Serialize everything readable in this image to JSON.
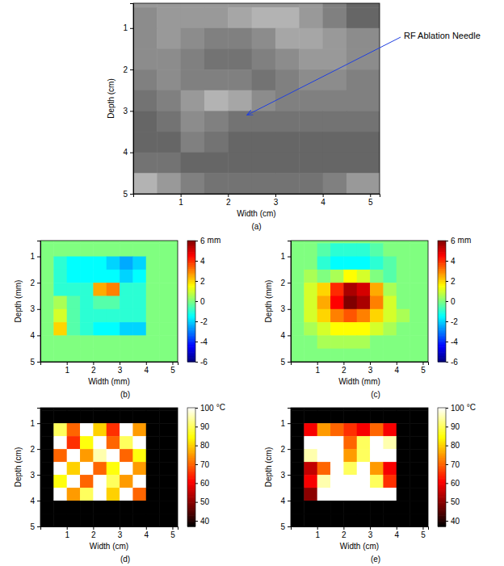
{
  "chart_data": [
    {
      "type": "heatmap",
      "caption": "(a)",
      "xlabel": "Width (cm)",
      "ylabel": "Depth (cm)",
      "xlim": [
        0,
        5.2
      ],
      "ylim": [
        0.4,
        5
      ],
      "xticks": [
        1,
        2,
        3,
        4,
        5
      ],
      "yticks": [
        1,
        2,
        3,
        4,
        5
      ],
      "color": "gray",
      "zlim": [
        0,
        1
      ],
      "x_edges": [
        0,
        0.5,
        1,
        1.5,
        2,
        2.5,
        3,
        3.5,
        4,
        4.5,
        5.2
      ],
      "y_edges": [
        0,
        0.5,
        1,
        1.5,
        2,
        2.5,
        3,
        3.5,
        4,
        4.5,
        5
      ],
      "cells": [
        [
          0.6,
          0.6,
          0.6,
          0.6,
          0.6,
          0.6,
          0.6,
          0.6,
          0.5,
          0.4
        ],
        [
          0.55,
          0.6,
          0.6,
          0.6,
          0.65,
          0.7,
          0.7,
          0.6,
          0.5,
          0.4
        ],
        [
          0.55,
          0.6,
          0.55,
          0.5,
          0.5,
          0.55,
          0.65,
          0.65,
          0.6,
          0.55
        ],
        [
          0.55,
          0.55,
          0.5,
          0.45,
          0.45,
          0.5,
          0.55,
          0.6,
          0.6,
          0.55
        ],
        [
          0.5,
          0.55,
          0.5,
          0.5,
          0.5,
          0.45,
          0.5,
          0.55,
          0.55,
          0.5
        ],
        [
          0.45,
          0.5,
          0.6,
          0.7,
          0.65,
          0.55,
          0.5,
          0.5,
          0.5,
          0.5
        ],
        [
          0.4,
          0.45,
          0.55,
          0.5,
          0.45,
          0.45,
          0.45,
          0.45,
          0.45,
          0.45
        ],
        [
          0.4,
          0.4,
          0.5,
          0.45,
          0.4,
          0.4,
          0.4,
          0.4,
          0.4,
          0.4
        ],
        [
          0.45,
          0.45,
          0.4,
          0.4,
          0.4,
          0.4,
          0.4,
          0.4,
          0.4,
          0.4
        ],
        [
          0.7,
          0.6,
          0.5,
          0.45,
          0.45,
          0.45,
          0.45,
          0.45,
          0.5,
          0.6
        ]
      ],
      "annotations": [
        {
          "text": "RF Ablation Needle",
          "x": 2.4,
          "y": 3.1
        }
      ]
    },
    {
      "type": "heatmap",
      "caption": "(b)",
      "xlabel": "Width (mm)",
      "ylabel": "Depth (mm)",
      "xlim": [
        0,
        5.2
      ],
      "ylim": [
        0.4,
        5
      ],
      "xticks": [
        1,
        2,
        3,
        4,
        5
      ],
      "yticks": [
        1,
        2,
        3,
        4,
        5
      ],
      "color": "jet",
      "zlim": [
        -6,
        6
      ],
      "colorbar": {
        "ticks": [
          -6,
          -4,
          -2,
          0,
          2,
          4,
          6
        ],
        "label": "mm"
      },
      "x_edges": [
        0,
        0.5,
        1,
        1.5,
        2,
        2.5,
        3,
        3.5,
        4,
        4.5,
        5.2
      ],
      "y_edges": [
        0,
        0.5,
        1,
        1.5,
        2,
        2.5,
        3,
        3.5,
        4,
        4.5,
        5
      ],
      "cells": [
        [
          0,
          0,
          0,
          0,
          0,
          0,
          0,
          0,
          0,
          0
        ],
        [
          0,
          0,
          0,
          0,
          0,
          0,
          0,
          0,
          0,
          0
        ],
        [
          0,
          -1,
          -1.5,
          -1.5,
          -1.5,
          -2,
          -2.5,
          -2,
          0,
          0
        ],
        [
          0,
          -1,
          -1.5,
          -1.5,
          -1.5,
          -1.5,
          -2,
          -1.5,
          0,
          0
        ],
        [
          0,
          -1,
          -1,
          -1,
          2.5,
          3,
          -1,
          -1,
          0,
          0
        ],
        [
          0,
          0.5,
          -0.5,
          -1,
          -0.5,
          -0.5,
          -1,
          -1,
          0,
          0
        ],
        [
          0,
          1,
          -0.5,
          -1,
          -1,
          -1,
          -1,
          -1,
          0,
          0
        ],
        [
          0,
          2,
          -0.5,
          -1,
          -1.5,
          -1.5,
          -2,
          -2,
          0,
          0
        ],
        [
          0,
          0,
          0,
          0,
          0,
          0,
          0,
          0,
          0,
          0
        ],
        [
          0,
          0,
          0,
          0,
          0,
          0,
          0,
          0,
          0,
          0
        ]
      ]
    },
    {
      "type": "heatmap",
      "caption": "(c)",
      "xlabel": "Width (mm)",
      "ylabel": "Depth (mm)",
      "xlim": [
        0,
        5.2
      ],
      "ylim": [
        0.4,
        5
      ],
      "xticks": [
        1,
        2,
        3,
        4,
        5
      ],
      "yticks": [
        1,
        2,
        3,
        4,
        5
      ],
      "color": "jet",
      "zlim": [
        -6,
        6
      ],
      "colorbar": {
        "ticks": [
          -6,
          -4,
          -2,
          0,
          2,
          4,
          6
        ],
        "label": "mm"
      },
      "x_edges": [
        0,
        0.5,
        1,
        1.5,
        2,
        2.5,
        3,
        3.5,
        4,
        4.5,
        5.2
      ],
      "y_edges": [
        0,
        0.5,
        1,
        1.5,
        2,
        2.5,
        3,
        3.5,
        4,
        4.5,
        5
      ],
      "cells": [
        [
          0,
          0,
          0,
          0,
          0,
          0,
          0,
          0,
          0,
          0
        ],
        [
          0,
          0,
          -0.5,
          -1,
          -1,
          -1,
          -0.5,
          0,
          0,
          0
        ],
        [
          0,
          0,
          -1,
          -1.5,
          -1.5,
          -1.5,
          -1,
          -0.5,
          0,
          0
        ],
        [
          0,
          0.5,
          0,
          0.5,
          1.5,
          1,
          0,
          -0.5,
          0,
          0
        ],
        [
          0,
          1,
          2,
          4,
          5.5,
          5,
          2.5,
          0.5,
          0,
          0
        ],
        [
          0,
          1,
          2.5,
          4.5,
          6,
          5.5,
          3,
          1,
          0,
          0
        ],
        [
          0,
          1,
          2,
          3,
          3.5,
          3,
          2,
          1,
          0.5,
          0
        ],
        [
          0,
          0.5,
          1,
          1.5,
          1.5,
          1.5,
          1,
          0.5,
          0,
          0
        ],
        [
          0,
          0,
          0.5,
          0.5,
          0.5,
          0.5,
          0,
          0,
          0,
          0
        ],
        [
          0,
          0,
          0,
          0,
          0,
          0,
          0,
          0,
          0,
          0
        ]
      ]
    },
    {
      "type": "heatmap",
      "caption": "(d)",
      "xlabel": "Width (cm)",
      "ylabel": "Depth (cm)",
      "xlim": [
        0,
        5.2
      ],
      "ylim": [
        0.4,
        5
      ],
      "xticks": [
        1,
        2,
        3,
        4,
        5
      ],
      "yticks": [
        1,
        2,
        3,
        4,
        5
      ],
      "color": "hot",
      "zlim": [
        37,
        100
      ],
      "colorbar": {
        "ticks": [
          40,
          50,
          60,
          70,
          80,
          90,
          100
        ],
        "label": "°C"
      },
      "x_edges": [
        0,
        0.5,
        1,
        1.5,
        2,
        2.5,
        3,
        3.5,
        4,
        4.5,
        5.2
      ],
      "y_edges": [
        0,
        0.5,
        1,
        1.5,
        2,
        2.5,
        3,
        3.5,
        4,
        4.5,
        5
      ],
      "cells": [
        [
          37,
          37,
          37,
          37,
          37,
          37,
          37,
          37,
          37,
          37
        ],
        [
          37,
          37,
          37,
          37,
          37,
          37,
          37,
          37,
          37,
          37
        ],
        [
          37,
          90,
          70,
          100,
          80,
          65,
          100,
          75,
          37,
          37
        ],
        [
          37,
          100,
          65,
          85,
          100,
          70,
          90,
          100,
          37,
          37
        ],
        [
          37,
          70,
          100,
          75,
          95,
          100,
          70,
          85,
          37,
          37
        ],
        [
          37,
          100,
          80,
          100,
          70,
          85,
          100,
          75,
          37,
          37
        ],
        [
          37,
          85,
          100,
          70,
          100,
          90,
          75,
          100,
          37,
          37
        ],
        [
          37,
          100,
          75,
          90,
          100,
          80,
          100,
          70,
          37,
          37
        ],
        [
          37,
          37,
          37,
          37,
          37,
          37,
          37,
          37,
          37,
          37
        ],
        [
          37,
          37,
          37,
          37,
          37,
          37,
          37,
          37,
          37,
          37
        ]
      ]
    },
    {
      "type": "heatmap",
      "caption": "(e)",
      "xlabel": "Width (cm)",
      "ylabel": "Depth (cm)",
      "xlim": [
        0,
        5.2
      ],
      "ylim": [
        0.4,
        5
      ],
      "xticks": [
        1,
        2,
        3,
        4,
        5
      ],
      "yticks": [
        1,
        2,
        3,
        4,
        5
      ],
      "color": "hot",
      "zlim": [
        37,
        100
      ],
      "colorbar": {
        "ticks": [
          40,
          50,
          60,
          70,
          80,
          90,
          100
        ],
        "label": "°C"
      },
      "x_edges": [
        0,
        0.5,
        1,
        1.5,
        2,
        2.5,
        3,
        3.5,
        4,
        4.5,
        5.2
      ],
      "y_edges": [
        0,
        0.5,
        1,
        1.5,
        2,
        2.5,
        3,
        3.5,
        4,
        4.5,
        5
      ],
      "cells": [
        [
          37,
          37,
          37,
          37,
          37,
          37,
          37,
          37,
          37,
          37
        ],
        [
          37,
          37,
          37,
          37,
          37,
          37,
          37,
          37,
          37,
          37
        ],
        [
          37,
          60,
          75,
          70,
          65,
          60,
          70,
          60,
          37,
          37
        ],
        [
          37,
          100,
          100,
          100,
          70,
          90,
          100,
          95,
          37,
          37
        ],
        [
          37,
          95,
          100,
          100,
          75,
          90,
          100,
          100,
          37,
          37
        ],
        [
          37,
          55,
          70,
          100,
          90,
          100,
          75,
          60,
          37,
          37
        ],
        [
          37,
          60,
          95,
          100,
          100,
          100,
          90,
          65,
          37,
          37
        ],
        [
          37,
          50,
          100,
          100,
          100,
          100,
          100,
          100,
          37,
          37
        ],
        [
          37,
          37,
          37,
          37,
          37,
          37,
          37,
          37,
          37,
          37
        ],
        [
          37,
          37,
          37,
          37,
          37,
          37,
          37,
          37,
          37,
          37
        ]
      ]
    }
  ]
}
